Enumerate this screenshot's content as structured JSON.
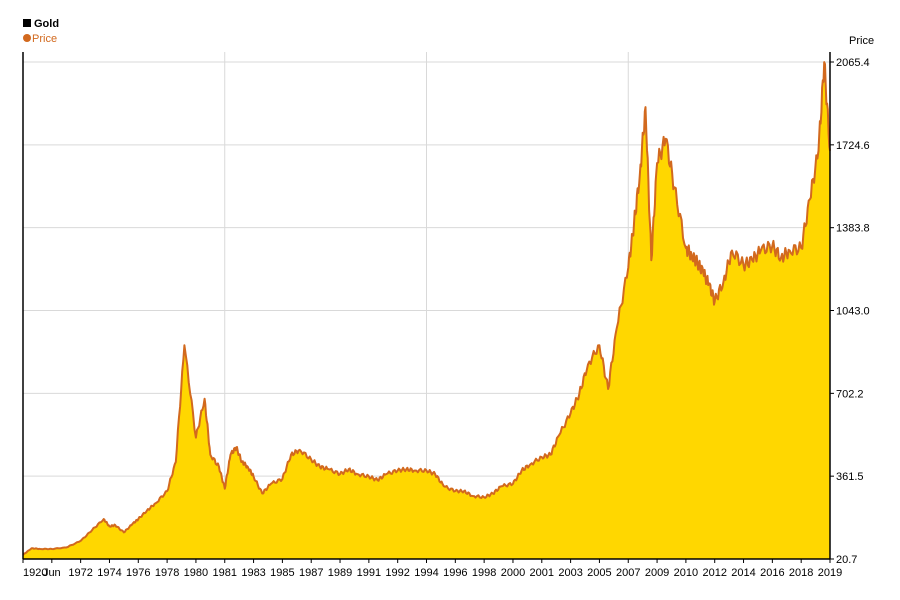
{
  "legend": {
    "title": "Gold",
    "series": "Price",
    "title_color": "#000000",
    "series_color": "#d2691e"
  },
  "chart_data": {
    "type": "area",
    "yaxis_title": "Price",
    "ylim": [
      20.7,
      2065.4
    ],
    "yticks": [
      "20.7",
      "361.5",
      "702.2",
      "1043.0",
      "1383.8",
      "1724.6",
      "2065.4"
    ],
    "xtick_labels": [
      "1920",
      "Jun",
      "1972",
      "1974",
      "1976",
      "1978",
      "1980",
      "1981",
      "1983",
      "1985",
      "1987",
      "1989",
      "1991",
      "1992",
      "1994",
      "1996",
      "1998",
      "2000",
      "2001",
      "2003",
      "2005",
      "2007",
      "2009",
      "2010",
      "2012",
      "2014",
      "2016",
      "2018",
      "2019"
    ],
    "grid": true,
    "colors": {
      "line": "#d2691e",
      "fill": "#ffd700",
      "grid": "#d9d9d9"
    },
    "x": [
      0,
      0.3,
      0.6,
      1.0,
      1.5,
      2.0,
      2.4,
      2.8,
      3.0,
      3.2,
      3.5,
      3.8,
      4.0,
      4.3,
      4.6,
      5.0,
      5.3,
      5.6,
      6.0,
      6.3,
      6.5,
      6.8,
      7.0,
      7.2,
      7.4,
      7.6,
      7.8,
      8.0,
      8.3,
      8.6,
      9.0,
      9.3,
      9.6,
      10.0,
      10.3,
      10.6,
      11.0,
      11.3,
      11.6,
      12.0,
      12.3,
      12.6,
      13.0,
      13.3,
      13.6,
      14.0,
      14.3,
      14.6,
      15.0,
      15.3,
      15.6,
      16.0,
      16.3,
      16.6,
      17.0,
      17.3,
      17.6,
      18.0,
      18.3,
      18.6,
      19.0,
      19.3,
      19.6,
      20.0,
      20.3,
      20.6,
      21.0,
      21.2,
      21.4,
      21.6,
      21.8,
      22.0,
      22.3,
      22.6,
      23.0,
      23.2,
      23.4,
      23.6,
      23.8,
      24.0,
      24.3,
      24.6,
      25.0,
      25.3,
      25.6,
      26.0,
      26.3,
      26.6,
      27.0,
      27.3,
      27.6,
      27.8,
      28.0
    ],
    "values": [
      38,
      65,
      62,
      62,
      68,
      95,
      140,
      185,
      155,
      160,
      130,
      165,
      185,
      220,
      250,
      300,
      420,
      900,
      520,
      680,
      450,
      400,
      310,
      450,
      480,
      420,
      400,
      360,
      290,
      330,
      350,
      450,
      470,
      430,
      400,
      390,
      370,
      390,
      370,
      360,
      345,
      370,
      385,
      390,
      385,
      385,
      370,
      320,
      300,
      300,
      280,
      275,
      290,
      320,
      330,
      385,
      410,
      440,
      450,
      530,
      620,
      700,
      820,
      900,
      720,
      970,
      1220,
      1400,
      1600,
      1880,
      1250,
      1650,
      1750,
      1550,
      1300,
      1270,
      1240,
      1200,
      1150,
      1080,
      1160,
      1290,
      1230,
      1250,
      1290,
      1310,
      1260,
      1290,
      1300,
      1500,
      1700,
      2065,
      1700
    ]
  }
}
